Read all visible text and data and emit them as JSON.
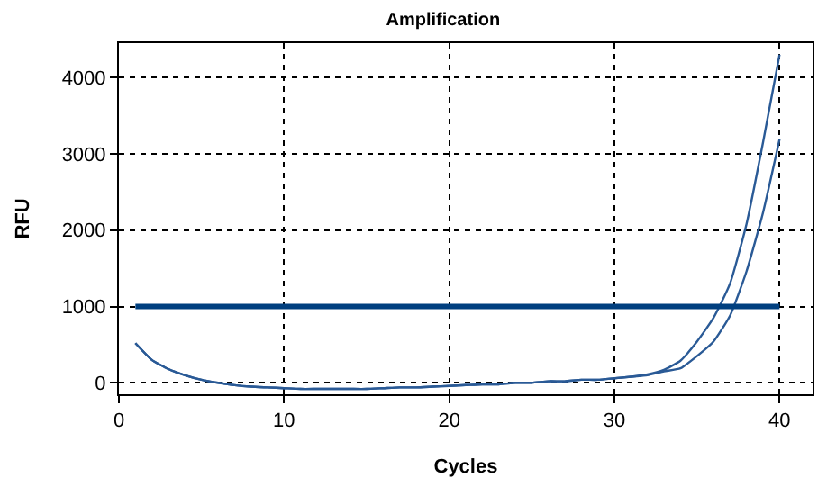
{
  "chart_data": {
    "type": "line",
    "title": "Amplification",
    "xlabel": "Cycles",
    "ylabel": "RFU",
    "xlim": [
      0,
      42
    ],
    "xticks": [
      0,
      10,
      20,
      30,
      40
    ],
    "ylim": [
      -150,
      4450
    ],
    "yticks": [
      0,
      1000,
      2000,
      3000,
      4000
    ],
    "grid": true,
    "marker": "none",
    "line_style": "solid",
    "x": [
      1,
      2,
      3,
      4,
      5,
      6,
      7,
      8,
      9,
      10,
      11,
      12,
      13,
      14,
      15,
      16,
      17,
      18,
      19,
      20,
      21,
      22,
      23,
      24,
      25,
      26,
      27,
      28,
      29,
      30,
      31,
      32,
      33,
      34,
      35,
      36,
      37,
      38,
      39,
      40
    ],
    "series": [
      {
        "color": "#2a5a96",
        "values": [
          520,
          300,
          180,
          100,
          40,
          0,
          -30,
          -50,
          -60,
          -70,
          -80,
          -80,
          -80,
          -80,
          -80,
          -70,
          -60,
          -60,
          -50,
          -40,
          -30,
          -20,
          -20,
          0,
          0,
          20,
          20,
          40,
          40,
          60,
          80,
          110,
          170,
          290,
          540,
          850,
          1300,
          2080,
          3150,
          4300
        ]
      },
      {
        "color": "#2a5a96",
        "values": [
          520,
          300,
          180,
          100,
          40,
          0,
          -30,
          -50,
          -60,
          -70,
          -80,
          -80,
          -80,
          -80,
          -80,
          -70,
          -60,
          -60,
          -50,
          -40,
          -30,
          -20,
          -20,
          0,
          0,
          20,
          20,
          40,
          40,
          60,
          80,
          100,
          150,
          190,
          350,
          540,
          880,
          1460,
          2230,
          3190
        ]
      },
      {
        "color": "#003f7f",
        "x": [
          1,
          40
        ],
        "values": [
          1000,
          1000
        ]
      }
    ]
  }
}
